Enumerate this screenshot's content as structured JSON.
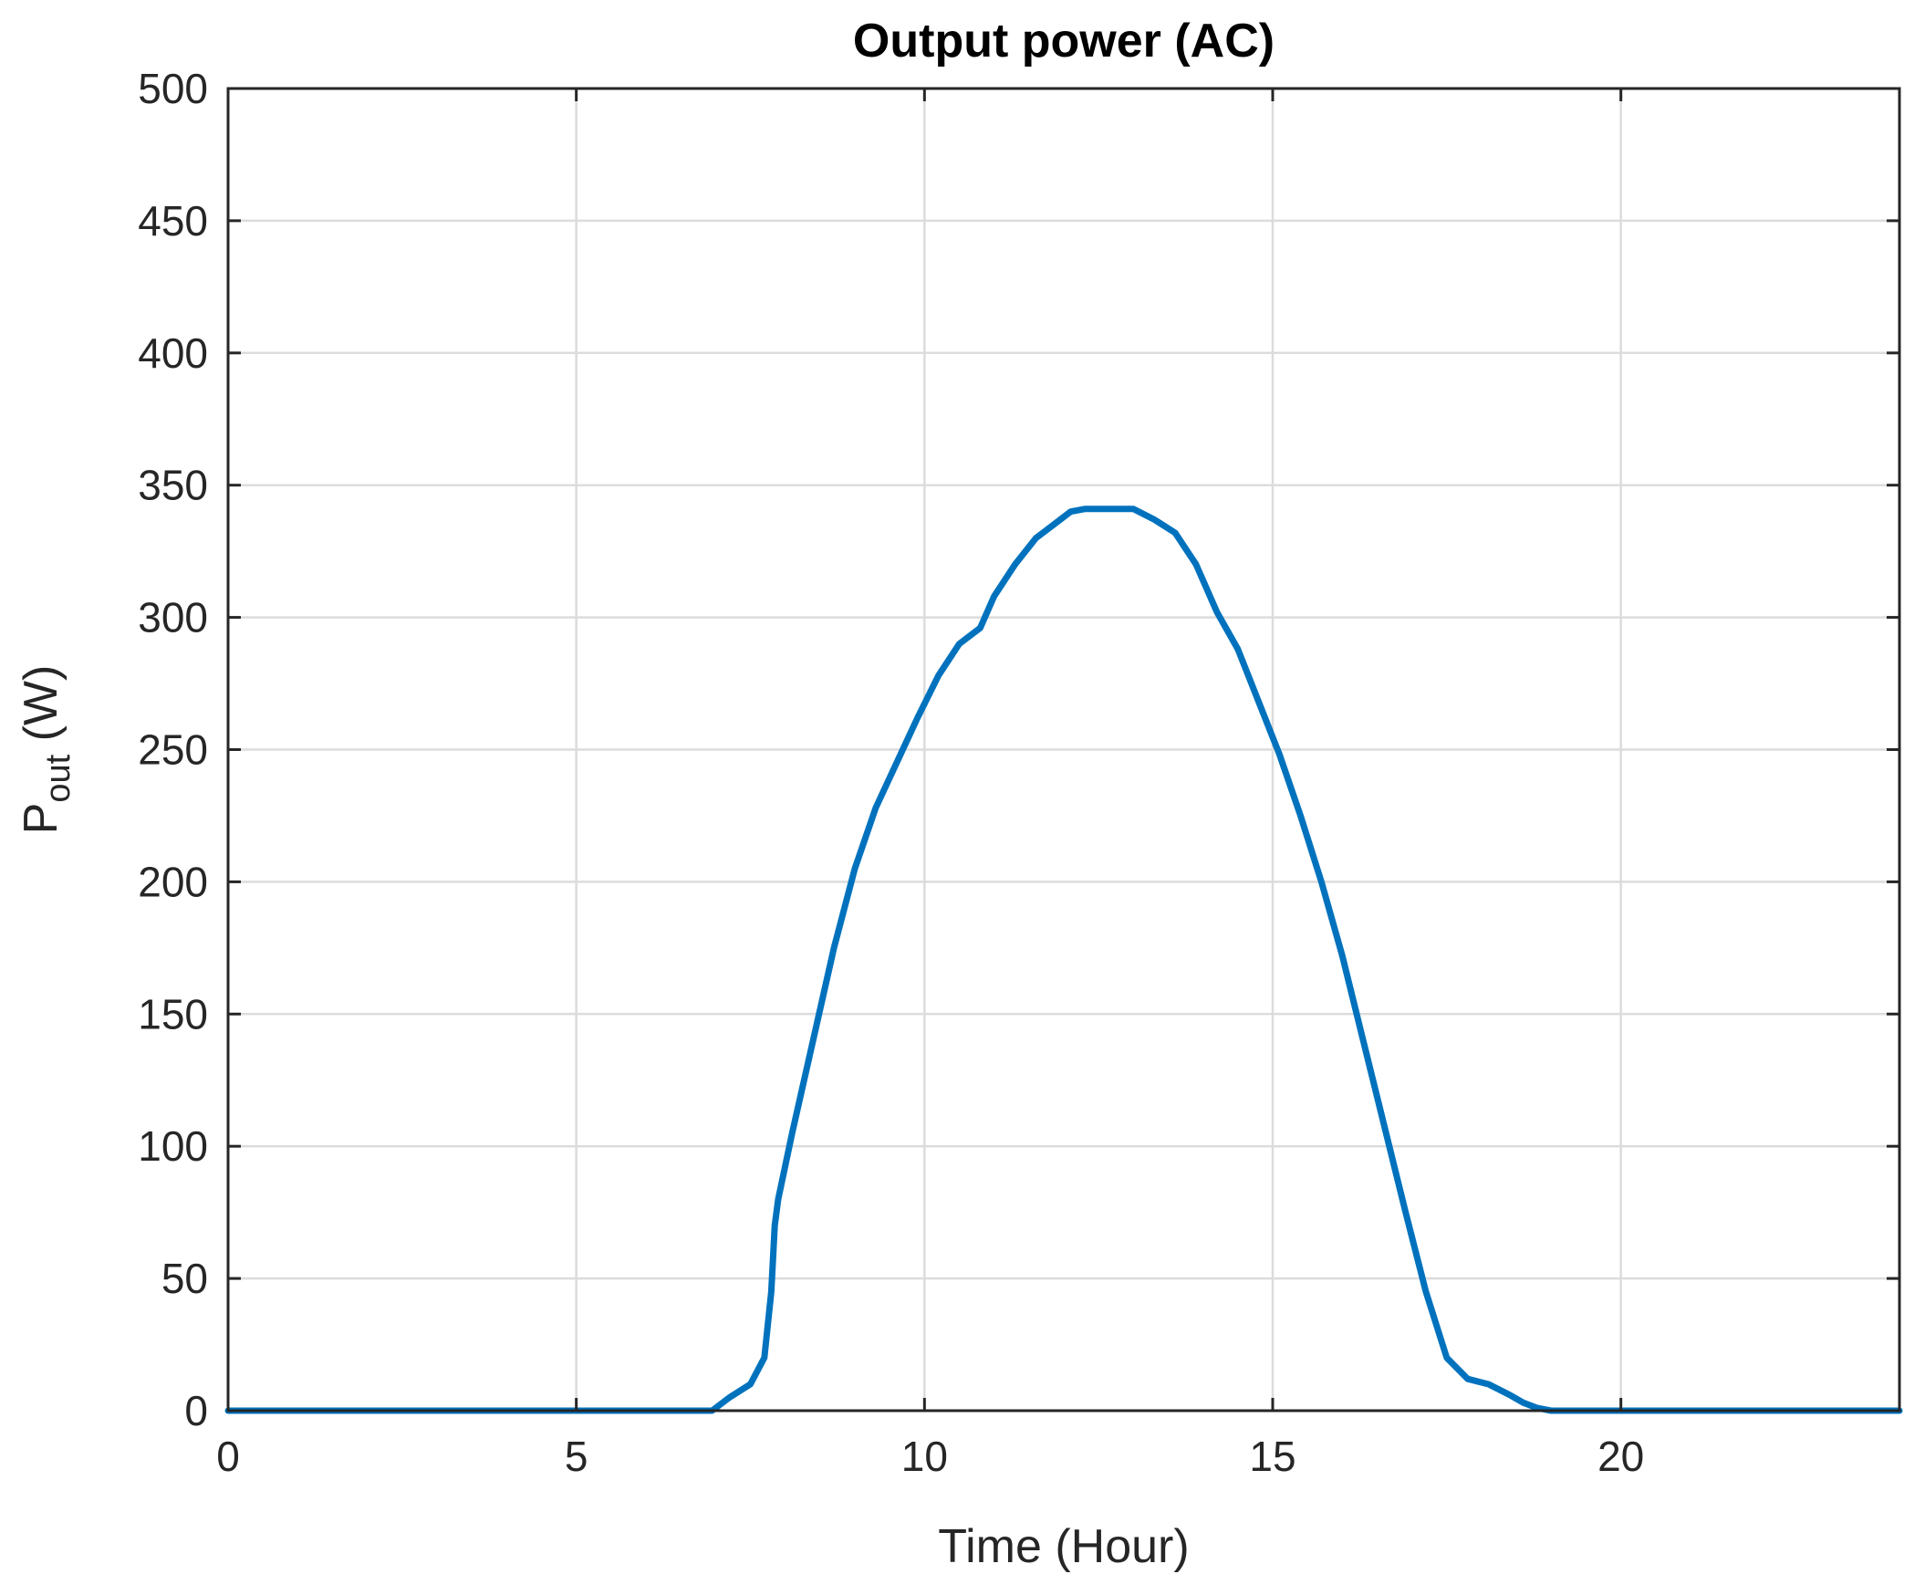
{
  "chart_data": {
    "type": "line",
    "title": "Output power (AC)",
    "xlabel": "Time (Hour)",
    "ylabel": {
      "main": "P",
      "subscript": "out",
      "unit": " (W)"
    },
    "xlim": [
      0,
      24
    ],
    "ylim": [
      0,
      500
    ],
    "xticks": [
      0,
      5,
      10,
      15,
      20
    ],
    "yticks": [
      0,
      50,
      100,
      150,
      200,
      250,
      300,
      350,
      400,
      450,
      500
    ],
    "grid": true,
    "line_color": "#0072BD",
    "series": [
      {
        "x": [
          0,
          6.95,
          7.2,
          7.5,
          7.7,
          7.8,
          7.85,
          7.9,
          8.1,
          8.4,
          8.7,
          9.0,
          9.3,
          9.6,
          9.9,
          10.2,
          10.5,
          10.8,
          11.0,
          11.3,
          11.6,
          11.9,
          12.1,
          12.3,
          12.6,
          13.0,
          13.3,
          13.6,
          13.9,
          14.2,
          14.5,
          14.8,
          15.1,
          15.4,
          15.7,
          16.0,
          16.3,
          16.6,
          16.9,
          17.2,
          17.5,
          17.8,
          18.1,
          18.4,
          18.6,
          18.8,
          19.0,
          19.2,
          19.4,
          19.5,
          24
        ],
        "y": [
          0,
          0,
          5,
          10,
          20,
          45,
          70,
          80,
          105,
          140,
          175,
          205,
          228,
          245,
          262,
          278,
          290,
          296,
          308,
          320,
          330,
          336,
          340,
          341,
          341,
          341,
          337,
          332,
          320,
          302,
          288,
          268,
          248,
          225,
          200,
          172,
          140,
          108,
          76,
          45,
          20,
          12,
          10,
          6,
          3,
          1,
          0,
          0,
          0,
          0,
          0
        ]
      }
    ]
  }
}
